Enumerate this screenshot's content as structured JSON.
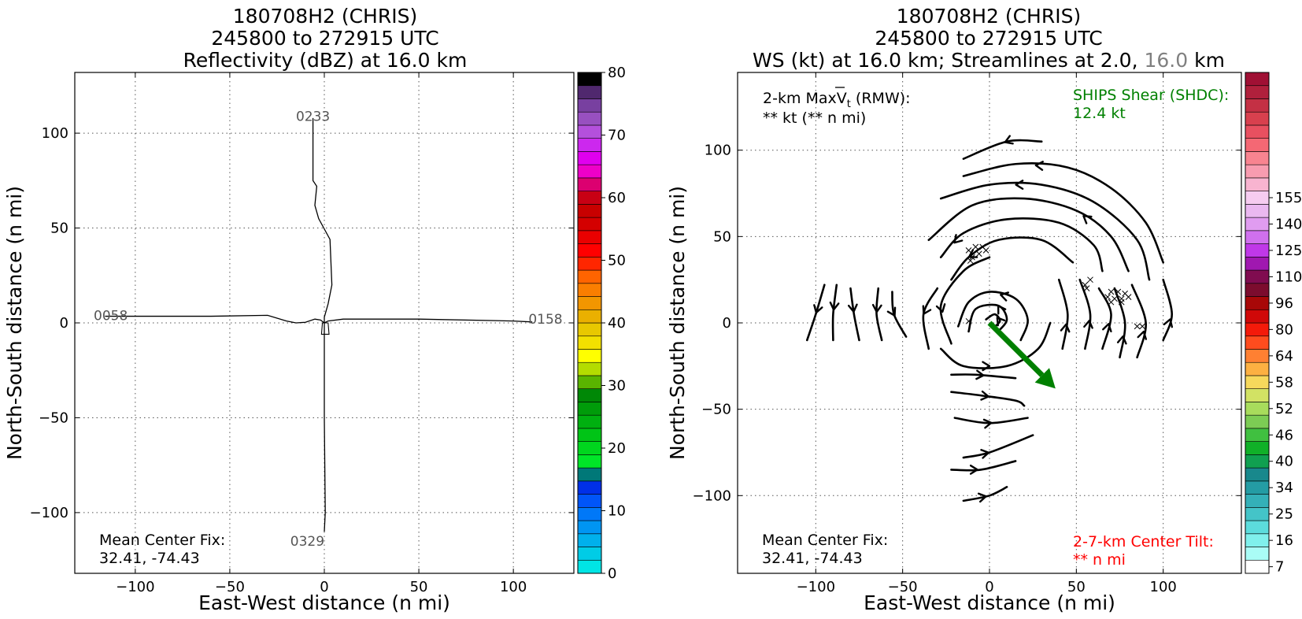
{
  "chart_data": [
    {
      "type": "line",
      "title_lines": [
        "180708H2 (CHRIS)",
        "245800 to 272915 UTC",
        "Reflectivity (dBZ) at 16.0 km"
      ],
      "xlabel": "East-West distance (n mi)",
      "ylabel": "North-South distance (n mi)",
      "xlim": [
        -132,
        132
      ],
      "ylim": [
        -132,
        132
      ],
      "xticks": [
        -100,
        -50,
        0,
        50,
        100
      ],
      "yticks": [
        -100,
        -50,
        0,
        50,
        100
      ],
      "xtick_labels": [
        "−100",
        "−50",
        "0",
        "50",
        "100"
      ],
      "ytick_labels": [
        "−100",
        "−50",
        "0",
        "50",
        "100"
      ],
      "grid": true,
      "flight_track": {
        "ew_leg": [
          [
            -116,
            3.5
          ],
          [
            -60,
            3.5
          ],
          [
            -30,
            4
          ],
          [
            -20,
            1
          ],
          [
            -15,
            0
          ],
          [
            -10,
            0.3
          ],
          [
            -5,
            2
          ],
          [
            -2,
            1.5
          ],
          [
            0,
            0
          ],
          [
            2,
            1
          ],
          [
            10,
            2
          ],
          [
            50,
            2
          ],
          [
            100,
            1
          ],
          [
            110,
            0.5
          ]
        ],
        "ns_leg": [
          [
            -6,
            108
          ],
          [
            -6,
            75
          ],
          [
            -4,
            72
          ],
          [
            -5,
            62
          ],
          [
            -3,
            55
          ],
          [
            3,
            44
          ],
          [
            4,
            20
          ],
          [
            2,
            10
          ],
          [
            0,
            3
          ],
          [
            0,
            -50
          ],
          [
            0.5,
            -100
          ],
          [
            0,
            -110
          ]
        ],
        "loop": [
          [
            -1,
            0
          ],
          [
            -1.5,
            -6
          ],
          [
            2.5,
            -6
          ],
          [
            2,
            0
          ]
        ]
      },
      "time_labels": [
        {
          "text": "0233",
          "x": -15,
          "y": 109
        },
        {
          "text": "0058",
          "x": -122,
          "y": 4
        },
        {
          "text": "0158",
          "x": 108,
          "y": 2
        },
        {
          "text": "0329",
          "x": -18,
          "y": -115
        }
      ],
      "center_fix": {
        "label": "Mean Center Fix:",
        "value": "32.41, -74.43"
      },
      "colorbar": {
        "label_ticks": [
          "0",
          "10",
          "20",
          "30",
          "40",
          "50",
          "60",
          "70",
          "80"
        ],
        "colors": [
          "#00e5e5",
          "#00cce6",
          "#00b0ec",
          "#0095f3",
          "#0078f8",
          "#0055f8",
          "#0030e8",
          "#007878",
          "#00e628",
          "#00d61e",
          "#00c416",
          "#00b010",
          "#009c0a",
          "#008806",
          "#5ab400",
          "#b4dc00",
          "#ffff00",
          "#f2e000",
          "#e8c800",
          "#eab000",
          "#f29600",
          "#fa7e00",
          "#ff6400",
          "#ff2600",
          "#ff0000",
          "#ea0000",
          "#d40000",
          "#c80000",
          "#c80014",
          "#dc0070",
          "#ee00c8",
          "#e000ee",
          "#cc28ee",
          "#b450dc",
          "#9850c0",
          "#7840a0",
          "#50286e",
          "#000000"
        ]
      }
    },
    {
      "type": "streamline",
      "title_lines": [
        "180708H2 (CHRIS)",
        "245800 to 272915 UTC"
      ],
      "title_line3": {
        "part1": "WS (kt) at 16.0 km; Streamlines at 2.0,",
        "part2": "16.0",
        "part3": "km"
      },
      "xlabel": "East-West distance (n mi)",
      "ylabel": "North-South distance (n mi)",
      "xlim": [
        -145,
        145
      ],
      "ylim": [
        -145,
        145
      ],
      "xticks": [
        -100,
        -50,
        0,
        50,
        100
      ],
      "yticks": [
        -100,
        -50,
        0,
        50,
        100
      ],
      "xtick_labels": [
        "−100",
        "−50",
        "0",
        "50",
        "100"
      ],
      "ytick_labels": [
        "−100",
        "−50",
        "0",
        "50",
        "100"
      ],
      "grid": true,
      "max_vt": {
        "line1": "2-km MaxV",
        "subscript": "t",
        "suffix": " (RMW):",
        "line2": "** kt (** n mi)"
      },
      "ships_shear": {
        "line1": "SHIPS Shear (SHDC):",
        "line2": "12.4 kt",
        "color": "#008000"
      },
      "center_fix": {
        "label": "Mean Center Fix:",
        "value": "32.41, -74.43"
      },
      "center_tilt": {
        "line1": "2-7-km Center Tilt:",
        "line2": "** n mi",
        "color": "#ff0000"
      },
      "shear_vector": {
        "from": [
          0,
          0
        ],
        "to": [
          38,
          -38
        ],
        "color": "#008000"
      },
      "colorbar": {
        "label_ticks": [
          "7",
          "16",
          "25",
          "34",
          "40",
          "46",
          "52",
          "58",
          "64",
          "80",
          "96",
          "110",
          "125",
          "140",
          "155"
        ],
        "tick_slots": [
          0,
          2,
          4,
          6,
          8,
          10,
          12,
          14,
          16,
          18,
          20,
          22,
          24,
          26,
          28
        ],
        "colors": [
          "#ffffff",
          "#aafcf6",
          "#80f0ec",
          "#5cdcdc",
          "#44c4c8",
          "#34b0b8",
          "#249ca4",
          "#18888c",
          "#10a050",
          "#10b028",
          "#40c040",
          "#7ccc54",
          "#a8dc5c",
          "#d2e264",
          "#f6d85c",
          "#fcb042",
          "#ff8032",
          "#ff4c1e",
          "#f41a0a",
          "#d00808",
          "#a80808",
          "#7c0c2e",
          "#800c50",
          "#a018b0",
          "#c038e8",
          "#d070ee",
          "#e09cf0",
          "#eab8f0",
          "#f6ccf0",
          "#f8b4d0",
          "#f89cb0",
          "#f88490",
          "#f46874",
          "#e85060",
          "#d8404e",
          "#c43044",
          "#b0203c",
          "#a01034"
        ]
      },
      "streamlines": [
        {
          "pts": [
            [
              -105,
              -10
            ],
            [
              -100,
              5
            ],
            [
              -95,
              22
            ]
          ],
          "arrow": 0.5,
          "dir": -1
        },
        {
          "pts": [
            [
              -90,
              -10
            ],
            [
              -90,
              5
            ],
            [
              -88,
              22
            ]
          ],
          "arrow": 0.55,
          "dir": -1
        },
        {
          "pts": [
            [
              -75,
              -10
            ],
            [
              -78,
              5
            ],
            [
              -80,
              20
            ]
          ],
          "arrow": 0.55,
          "dir": -1
        },
        {
          "pts": [
            [
              -62,
              -10
            ],
            [
              -65,
              5
            ],
            [
              -64,
              20
            ]
          ],
          "arrow": 0.55,
          "dir": -1
        },
        {
          "pts": [
            [
              -48,
              -8
            ],
            [
              -55,
              5
            ],
            [
              -56,
              18
            ]
          ],
          "arrow": 0.5,
          "dir": -1
        },
        {
          "pts": [
            [
              -35,
              -15
            ],
            [
              -38,
              5
            ],
            [
              -30,
              20
            ]
          ],
          "arrow": 0.55,
          "dir": -1
        },
        {
          "pts": [
            [
              -22,
              -12
            ],
            [
              -28,
              10
            ],
            [
              -15,
              30
            ],
            [
              0,
              38
            ]
          ],
          "arrow": 0.3,
          "dir": -1
        },
        {
          "pts": [
            [
              -22,
              25
            ],
            [
              -12,
              38
            ],
            [
              5,
              48
            ],
            [
              30,
              48
            ],
            [
              48,
              35
            ]
          ],
          "arrow": 0.2,
          "dir": -1
        },
        {
          "pts": [
            [
              -28,
              38
            ],
            [
              -15,
              52
            ],
            [
              10,
              60
            ],
            [
              40,
              58
            ],
            [
              60,
              45
            ],
            [
              65,
              30
            ]
          ],
          "arrow": 0.1,
          "dir": -1
        },
        {
          "pts": [
            [
              -35,
              48
            ],
            [
              -10,
              68
            ],
            [
              20,
              72
            ],
            [
              50,
              65
            ],
            [
              70,
              50
            ],
            [
              80,
              30
            ]
          ],
          "arrow": 0.7,
          "dir": -1
        },
        {
          "pts": [
            [
              -28,
              72
            ],
            [
              0,
              80
            ],
            [
              30,
              80
            ],
            [
              60,
              70
            ],
            [
              85,
              48
            ],
            [
              92,
              25
            ]
          ],
          "arrow": 0.3,
          "dir": -1
        },
        {
          "pts": [
            [
              -15,
              85
            ],
            [
              15,
              92
            ],
            [
              45,
              90
            ],
            [
              70,
              78
            ],
            [
              90,
              58
            ],
            [
              100,
              35
            ]
          ],
          "arrow": 0.3,
          "dir": -1
        },
        {
          "pts": [
            [
              -15,
              95
            ],
            [
              10,
              105
            ],
            [
              30,
              105
            ]
          ],
          "arrow": 0.55,
          "dir": -1
        },
        {
          "pts": [
            [
              -18,
              -2
            ],
            [
              -12,
              12
            ],
            [
              0,
              18
            ],
            [
              15,
              14
            ],
            [
              22,
              2
            ],
            [
              18,
              -10
            ]
          ],
          "arrow": 0.5,
          "dir": -1
        },
        {
          "pts": [
            [
              -12,
              -5
            ],
            [
              -8,
              8
            ],
            [
              5,
              10
            ],
            [
              10,
              2
            ],
            [
              5,
              -5
            ]
          ],
          "arrow": 0.6,
          "dir": -1
        },
        {
          "pts": [
            [
              -2,
              2
            ],
            [
              3,
              5
            ],
            [
              6,
              1
            ],
            [
              2,
              -3
            ]
          ],
          "arrow": 0.5,
          "dir": -1
        },
        {
          "pts": [
            [
              -28,
              -15
            ],
            [
              -15,
              -25
            ],
            [
              10,
              -25
            ],
            [
              28,
              -15
            ],
            [
              35,
              0
            ]
          ],
          "arrow": 0.4,
          "dir": 1
        },
        {
          "pts": [
            [
              42,
              -15
            ],
            [
              45,
              5
            ],
            [
              40,
              25
            ]
          ],
          "arrow": 0.35,
          "dir": 1
        },
        {
          "pts": [
            [
              55,
              -15
            ],
            [
              58,
              5
            ],
            [
              52,
              25
            ]
          ],
          "arrow": 0.4,
          "dir": 1
        },
        {
          "pts": [
            [
              65,
              -15
            ],
            [
              70,
              5
            ],
            [
              63,
              20
            ]
          ],
          "arrow": 0.4,
          "dir": 1
        },
        {
          "pts": [
            [
              75,
              -20
            ],
            [
              78,
              0
            ],
            [
              72,
              20
            ]
          ],
          "arrow": 0.3,
          "dir": 1
        },
        {
          "pts": [
            [
              85,
              -20
            ],
            [
              90,
              0
            ],
            [
              82,
              22
            ]
          ],
          "arrow": 0.35,
          "dir": 1
        },
        {
          "pts": [
            [
              100,
              -10
            ],
            [
              105,
              5
            ],
            [
              100,
              25
            ]
          ],
          "arrow": 0.35,
          "dir": 1
        },
        {
          "pts": [
            [
              -22,
              -30
            ],
            [
              -8,
              -30
            ],
            [
              15,
              -32
            ]
          ],
          "arrow": 0.5,
          "dir": 1
        },
        {
          "pts": [
            [
              -22,
              -40
            ],
            [
              -5,
              -42
            ],
            [
              15,
              -45
            ],
            [
              20,
              -48
            ]
          ],
          "arrow": 0.5,
          "dir": 1
        },
        {
          "pts": [
            [
              -20,
              -55
            ],
            [
              0,
              -58
            ],
            [
              22,
              -55
            ]
          ],
          "arrow": 0.5,
          "dir": 1
        },
        {
          "pts": [
            [
              -15,
              -78
            ],
            [
              0,
              -75
            ],
            [
              25,
              -65
            ]
          ],
          "arrow": 0.35,
          "dir": 1
        },
        {
          "pts": [
            [
              -22,
              -85
            ],
            [
              -5,
              -85
            ],
            [
              15,
              -80
            ]
          ],
          "arrow": 0.4,
          "dir": 1
        },
        {
          "pts": [
            [
              -15,
              -103
            ],
            [
              0,
              -100
            ],
            [
              10,
              -95
            ]
          ],
          "arrow": 0.5,
          "dir": 1
        }
      ],
      "x_marks": [
        [
          -12,
          42
        ],
        [
          -10,
          38
        ],
        [
          -8,
          44
        ],
        [
          -6,
          40
        ],
        [
          -4,
          44
        ],
        [
          -2,
          42
        ],
        [
          -11,
          36
        ],
        [
          55,
          22
        ],
        [
          58,
          25
        ],
        [
          56,
          20
        ],
        [
          68,
          15
        ],
        [
          70,
          18
        ],
        [
          72,
          14
        ],
        [
          74,
          18
        ],
        [
          76,
          14
        ],
        [
          78,
          17
        ],
        [
          80,
          15
        ],
        [
          70,
          12
        ],
        [
          76,
          12
        ],
        [
          -12,
          1
        ],
        [
          85,
          -2
        ],
        [
          88,
          -2
        ]
      ]
    }
  ]
}
